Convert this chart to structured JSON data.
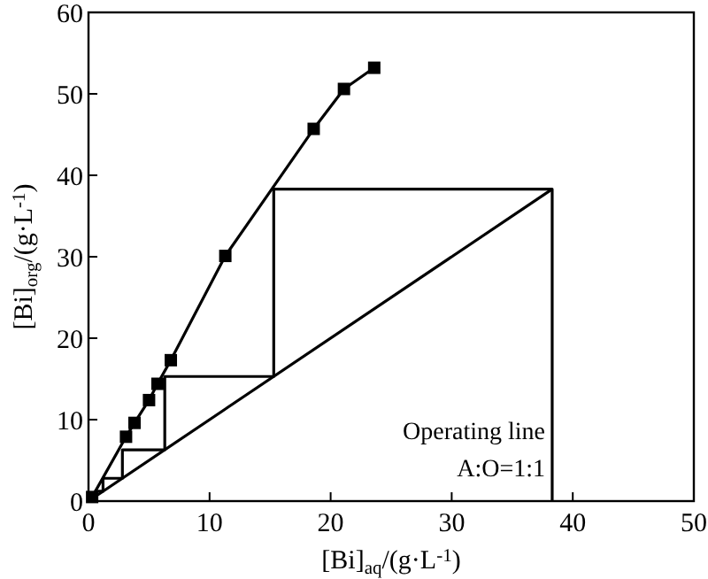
{
  "chart_data": {
    "type": "line",
    "xlabel": "[Bi]$_{aq}$/(g·L$^{-1}$)",
    "ylabel": "[Bi]$_{org}$/(g·L$^{-1}$)",
    "xlim": [
      0,
      50
    ],
    "ylim": [
      0,
      60
    ],
    "xticks": [
      0,
      10,
      20,
      30,
      40,
      50
    ],
    "yticks": [
      0,
      10,
      20,
      30,
      40,
      50,
      60
    ],
    "grid": false,
    "line_style": "solid",
    "series": [
      {
        "color": "#000000",
        "marker": "square",
        "x": [
          0.3,
          3.1,
          3.8,
          5.0,
          5.7,
          6.8,
          11.3,
          18.6,
          21.1,
          23.6
        ],
        "values": [
          0.5,
          7.9,
          9.6,
          12.4,
          14.4,
          17.3,
          30.1,
          45.7,
          50.6,
          53.2
        ]
      },
      {
        "color": "#000000",
        "marker": "none",
        "x": [
          0,
          38.3
        ],
        "values": [
          0,
          38.3
        ]
      },
      {
        "color": "#000000",
        "marker": "none",
        "x": [
          38.3,
          38.3,
          15.3,
          15.3,
          6.3,
          6.3,
          2.8,
          2.8,
          1.2,
          1.2,
          0.5
        ],
        "values": [
          0,
          38.3,
          38.3,
          15.3,
          15.3,
          6.3,
          6.3,
          2.8,
          2.8,
          1.2,
          1.2
        ]
      }
    ],
    "annotations": [
      "Operating line",
      "A:O=1:1"
    ]
  }
}
